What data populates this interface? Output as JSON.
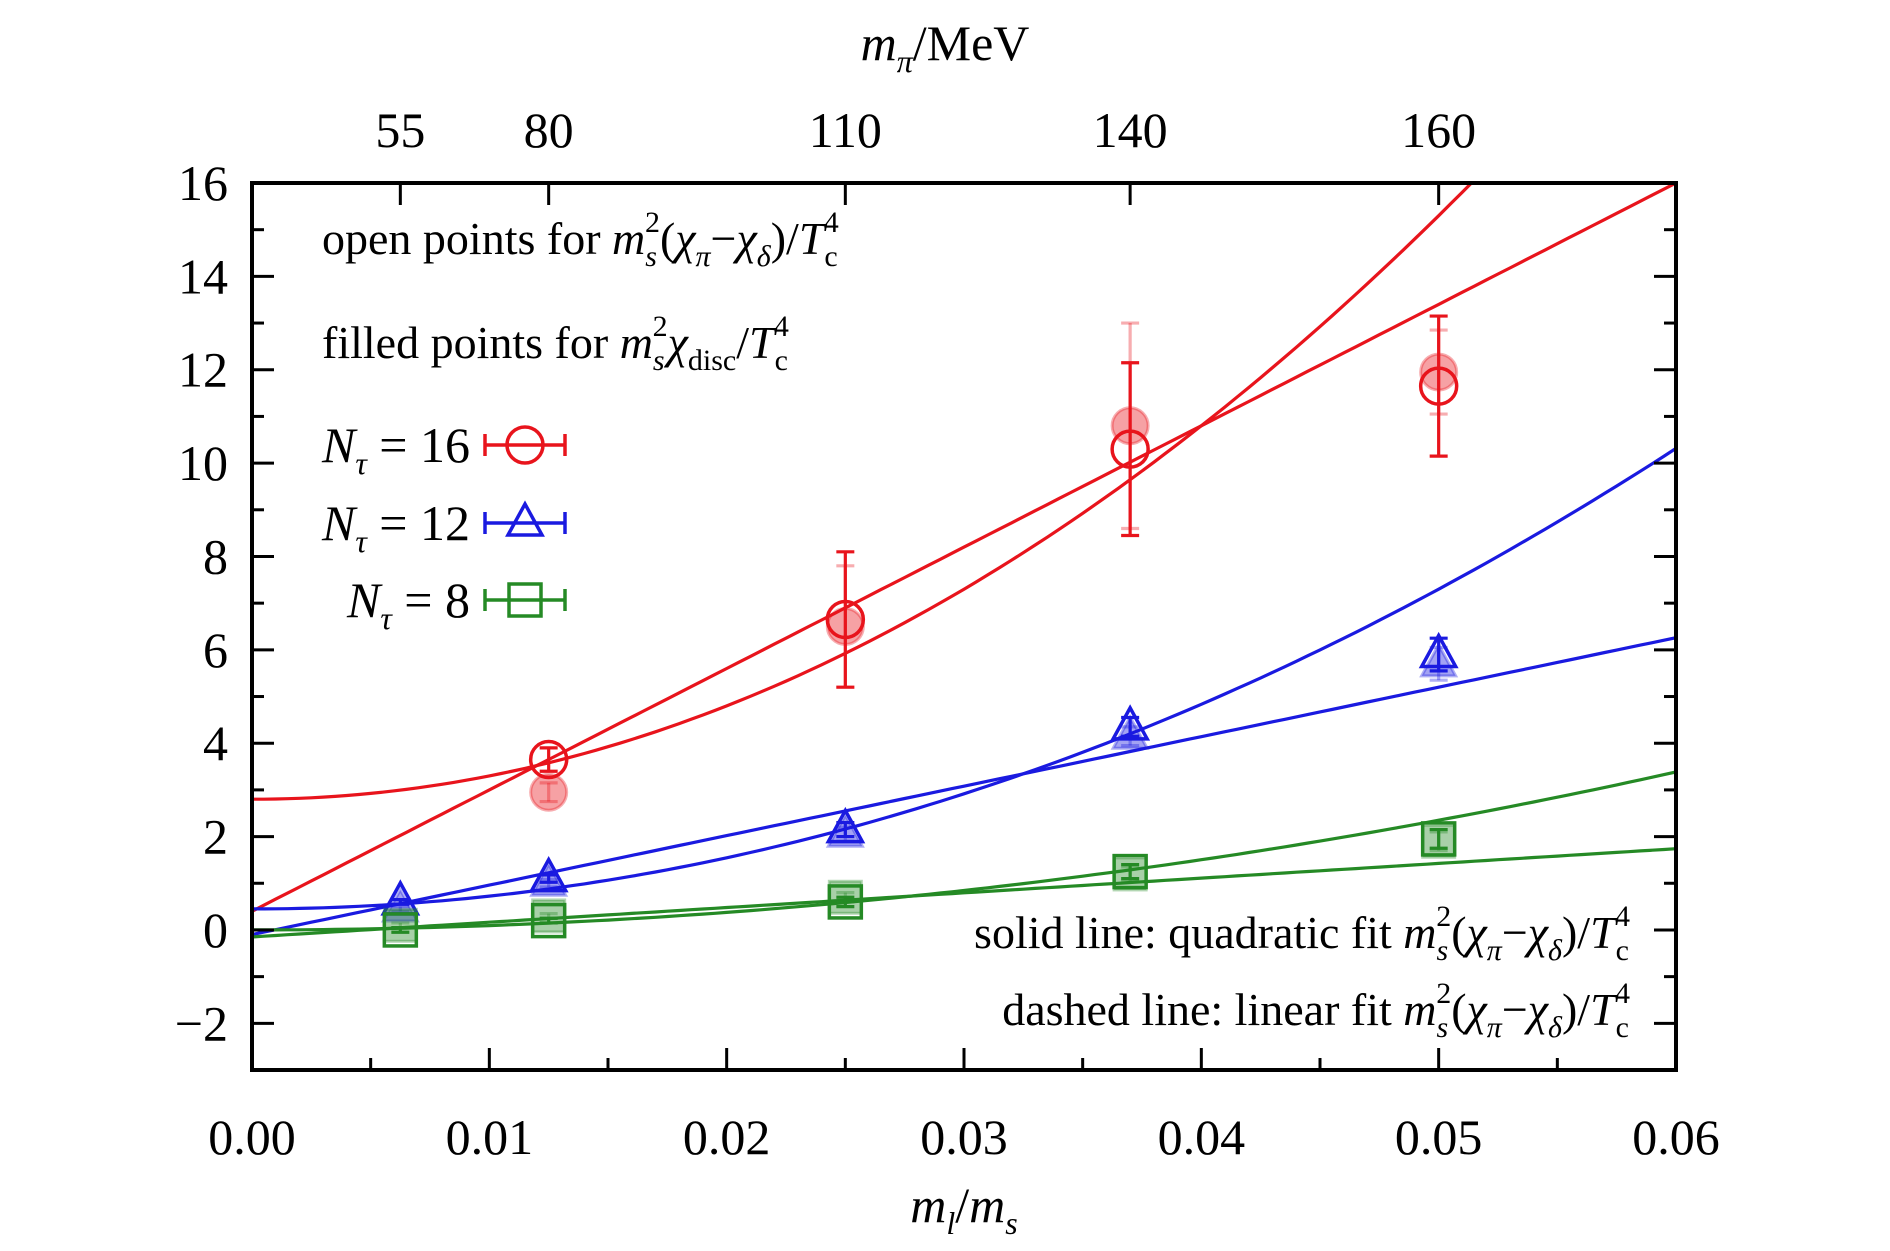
{
  "chart_data": {
    "type": "scatter",
    "xlabel": "m_l/m_s",
    "ylabel": "",
    "top_xlabel": "m_π/MeV",
    "xlim": [
      0,
      0.06
    ],
    "ylim": [
      -3,
      16
    ],
    "grid": false,
    "legend_position": "left",
    "x_ticks": [
      "0.00",
      "0.01",
      "0.02",
      "0.03",
      "0.04",
      "0.05",
      "0.06"
    ],
    "y_ticks": [
      "−2",
      "0",
      "2",
      "4",
      "6",
      "8",
      "10",
      "12",
      "14",
      "16"
    ],
    "top_ticks": [
      {
        "label": "55",
        "x": 0.00625
      },
      {
        "label": "80",
        "x": 0.0125
      },
      {
        "label": "110",
        "x": 0.025
      },
      {
        "label": "140",
        "x": 0.037
      },
      {
        "label": "160",
        "x": 0.05
      }
    ],
    "annotations": {
      "open_points": "open points for m_s^2(χ_π−χ_δ)/T_c^4",
      "filled_points": "filled points for m_s^2 χ_disc/T_c^4",
      "solid_line": "solid line: quadratic fit m_s^2(χ_π−χ_δ)/T_c^4",
      "dashed_line": "dashed line: linear fit m_s^2(χ_π−χ_δ)/T_c^4"
    },
    "series": [
      {
        "name": "N_τ = 16",
        "legend_label": "N",
        "legend_sub": "τ",
        "legend_value": " = 16",
        "color": "#e8141c",
        "marker": "circle",
        "open_points": [
          {
            "x": 0.0125,
            "y": 3.65,
            "err": 0.25
          },
          {
            "x": 0.025,
            "y": 6.65,
            "err": 1.45
          },
          {
            "x": 0.037,
            "y": 10.3,
            "err": 1.85
          },
          {
            "x": 0.05,
            "y": 11.65,
            "err": 1.5
          }
        ],
        "filled_points": [
          {
            "x": 0.0125,
            "y": 2.95,
            "err": 0.2
          },
          {
            "x": 0.025,
            "y": 6.5,
            "err": 1.3
          },
          {
            "x": 0.037,
            "y": 10.8,
            "err": 2.2
          },
          {
            "x": 0.05,
            "y": 11.95,
            "err": 0.9
          }
        ],
        "fit_quadratic": {
          "a": 2.8,
          "b": 0,
          "c": 5000
        },
        "fit_linear": {
          "a": 0.4,
          "b": 260
        }
      },
      {
        "name": "N_τ = 12",
        "legend_label": "N",
        "legend_sub": "τ",
        "legend_value": " = 12",
        "color": "#1a1ae0",
        "marker": "triangle",
        "open_points": [
          {
            "x": 0.00625,
            "y": 0.6,
            "err": 0.05
          },
          {
            "x": 0.0125,
            "y": 1.1,
            "err": 0.08
          },
          {
            "x": 0.025,
            "y": 2.15,
            "err": 0.15
          },
          {
            "x": 0.037,
            "y": 4.35,
            "err": 0.2
          },
          {
            "x": 0.05,
            "y": 5.9,
            "err": 0.35
          }
        ],
        "filled_points": [
          {
            "x": 0.00625,
            "y": 0.45,
            "err": 0.05
          },
          {
            "x": 0.0125,
            "y": 1.0,
            "err": 0.08
          },
          {
            "x": 0.025,
            "y": 2.05,
            "err": 0.15
          },
          {
            "x": 0.037,
            "y": 4.15,
            "err": 0.2
          },
          {
            "x": 0.05,
            "y": 5.7,
            "err": 0.35
          }
        ],
        "fit_quadratic": {
          "a": 0.45,
          "b": 0,
          "c": 2740
        },
        "fit_linear": {
          "a": -0.1,
          "b": 106
        }
      },
      {
        "name": "N_τ = 8",
        "legend_label": "N",
        "legend_sub": "τ",
        "legend_value": " = 8",
        "color": "#258a25",
        "marker": "square",
        "open_points": [
          {
            "x": 0.00625,
            "y": 0.0,
            "err": 0.05
          },
          {
            "x": 0.0125,
            "y": 0.2,
            "err": 0.05
          },
          {
            "x": 0.025,
            "y": 0.6,
            "err": 0.1
          },
          {
            "x": 0.037,
            "y": 1.25,
            "err": 0.15
          },
          {
            "x": 0.05,
            "y": 1.95,
            "err": 0.2
          }
        ],
        "filled_points": [
          {
            "x": 0.00625,
            "y": 0.1,
            "err": 0.05
          },
          {
            "x": 0.0125,
            "y": 0.3,
            "err": 0.05
          },
          {
            "x": 0.025,
            "y": 0.7,
            "err": 0.1
          },
          {
            "x": 0.037,
            "y": 1.2,
            "err": 0.15
          },
          {
            "x": 0.05,
            "y": 1.9,
            "err": 0.2
          }
        ],
        "fit_quadratic": {
          "a": 0.0,
          "b": 0,
          "c": 940
        },
        "fit_linear": {
          "a": -0.15,
          "b": 31.5
        }
      }
    ]
  }
}
